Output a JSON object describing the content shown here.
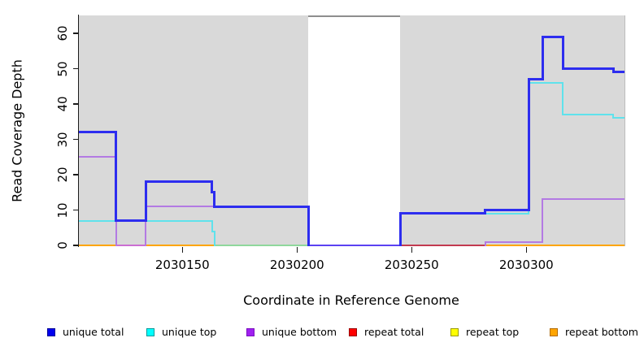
{
  "chart_data": {
    "type": "line",
    "subtype": "step-coverage",
    "title": "",
    "xlabel": "Coordinate in Reference Genome",
    "ylabel": "Read Coverage Depth",
    "x_ticks": [
      2030150,
      2030200,
      2030250,
      2030300
    ],
    "y_ticks": [
      0,
      10,
      20,
      30,
      40,
      50,
      60
    ],
    "xlim": [
      2030105,
      2030343
    ],
    "ylim": [
      0,
      65
    ],
    "grid": false,
    "plot_background": "#d9d9d9",
    "masked_region": {
      "x_start": 2030205,
      "x_end": 2030245,
      "color": "#ffffff",
      "top_border": "#8e8e8e"
    },
    "series": [
      {
        "name": "unique total",
        "color": "#2d2def",
        "lwd": 3,
        "points": [
          [
            2030105,
            32
          ],
          [
            2030121,
            7
          ],
          [
            2030134,
            18
          ],
          [
            2030163,
            15
          ],
          [
            2030164,
            11
          ],
          [
            2030205,
            0
          ],
          [
            2030245,
            9
          ],
          [
            2030282,
            10
          ],
          [
            2030301,
            47
          ],
          [
            2030307,
            59
          ],
          [
            2030316,
            50
          ],
          [
            2030338,
            49
          ],
          [
            2030343,
            49
          ]
        ]
      },
      {
        "name": "unique top",
        "color": "#5fe2ec",
        "lwd": 2,
        "points": [
          [
            2030105,
            7
          ],
          [
            2030163,
            4
          ],
          [
            2030164,
            0
          ],
          [
            2030245,
            9
          ],
          [
            2030301,
            46
          ],
          [
            2030316,
            37
          ],
          [
            2030338,
            36
          ],
          [
            2030343,
            36
          ]
        ]
      },
      {
        "name": "unique bottom",
        "color": "#b37ae3",
        "lwd": 2,
        "points": [
          [
            2030105,
            25
          ],
          [
            2030121,
            0
          ],
          [
            2030134,
            11
          ],
          [
            2030205,
            0
          ],
          [
            2030282,
            1
          ],
          [
            2030307,
            13
          ],
          [
            2030343,
            13
          ]
        ]
      },
      {
        "name": "repeat total",
        "color": "#ff0000",
        "lwd": 2,
        "points": [
          [
            2030105,
            0
          ],
          [
            2030343,
            0
          ]
        ]
      },
      {
        "name": "repeat top",
        "color": "#ffff00",
        "lwd": 2,
        "points": [
          [
            2030105,
            0
          ],
          [
            2030343,
            0
          ]
        ]
      },
      {
        "name": "repeat bottom",
        "color": "#ffa500",
        "lwd": 2,
        "points": [
          [
            2030105,
            0
          ],
          [
            2030343,
            0
          ]
        ]
      }
    ],
    "baseline_segments": [
      {
        "from": 2030105,
        "to": 2030121,
        "color": "#ffa500"
      },
      {
        "from": 2030121,
        "to": 2030134,
        "color": "#cb6ed2"
      },
      {
        "from": 2030134,
        "to": 2030164,
        "color": "#ffa500"
      },
      {
        "from": 2030164,
        "to": 2030205,
        "color": "#8fd79c"
      },
      {
        "from": 2030205,
        "to": 2030245,
        "color": "#5b42f2"
      },
      {
        "from": 2030245,
        "to": 2030282,
        "color": "#c23a50"
      },
      {
        "from": 2030282,
        "to": 2030343,
        "color": "#ffa500"
      }
    ]
  },
  "legend": {
    "items": [
      {
        "label": "unique total",
        "fill": "#0000ee",
        "border": "#000099"
      },
      {
        "label": "unique top",
        "fill": "#00ffff",
        "border": "#009a9a"
      },
      {
        "label": "unique bottom",
        "fill": "#a020f0",
        "border": "#7a0fc0"
      },
      {
        "label": "repeat total",
        "fill": "#ff0000",
        "border": "#990000"
      },
      {
        "label": "repeat top",
        "fill": "#ffff00",
        "border": "#9a9a00"
      },
      {
        "label": "repeat bottom",
        "fill": "#ffa500",
        "border": "#b36b00"
      }
    ]
  }
}
